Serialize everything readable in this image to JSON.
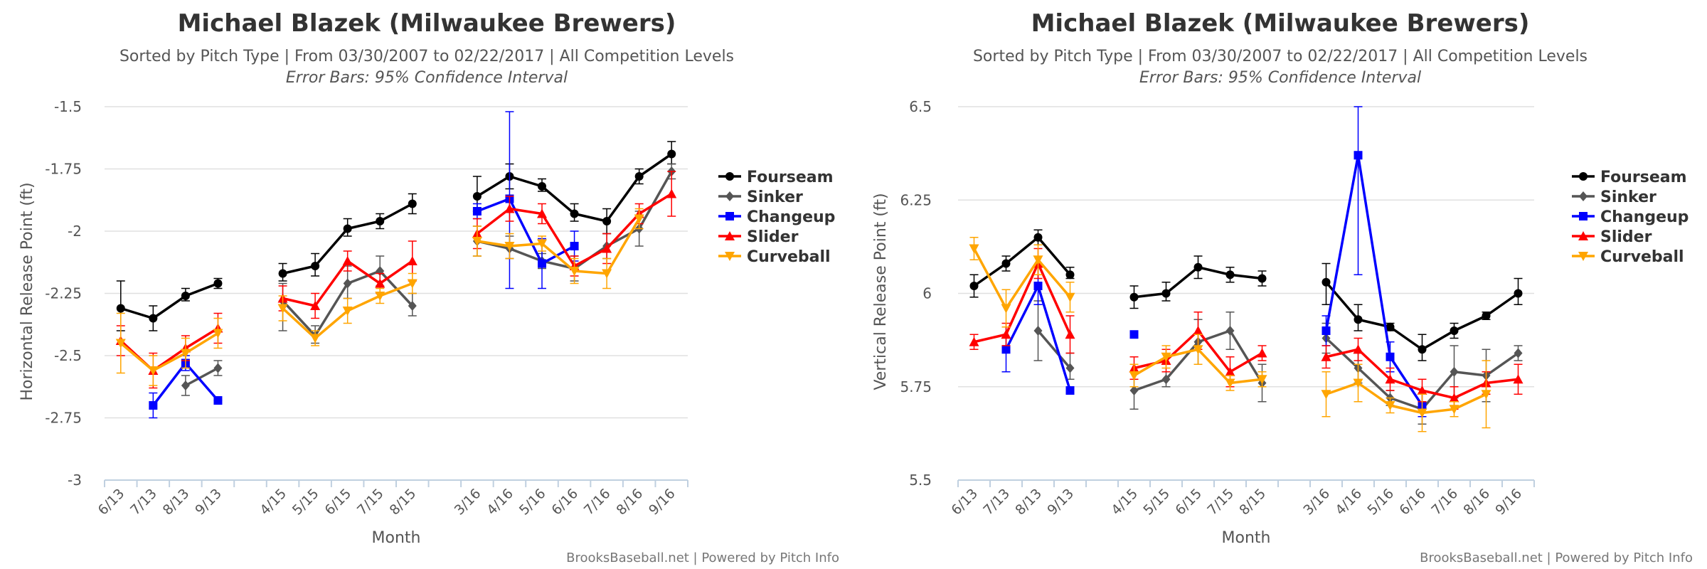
{
  "chart_data": [
    {
      "type": "line",
      "title": "Michael Blazek (Milwaukee Brewers)",
      "subtitle": "Sorted by Pitch Type | From 03/30/2007 to 02/22/2017 | All Competition Levels",
      "note": "Error Bars: 95% Confidence Interval",
      "xlabel": "Month",
      "ylabel": "Horizontal Release Point (ft)",
      "ylim": [
        -3,
        -1.5
      ],
      "yticks": [
        -1.5,
        -1.75,
        -2,
        -2.25,
        -2.5,
        -2.75,
        -3
      ],
      "ytick_labels": [
        "-1.5",
        "-1.75",
        "-2",
        "-2.25",
        "-2.5",
        "-2.75",
        "-3"
      ],
      "categories": [
        "6/13",
        "7/13",
        "8/13",
        "9/13",
        "",
        "4/15",
        "5/15",
        "6/15",
        "7/15",
        "8/15",
        "",
        "3/16",
        "4/16",
        "5/16",
        "6/16",
        "7/16",
        "8/16",
        "9/16"
      ],
      "legend_position": "right",
      "credit": "BrooksBaseball.net | Powered by Pitch Info",
      "series": [
        {
          "name": "Fourseam",
          "color": "#000000",
          "marker": "circle",
          "values": [
            -2.31,
            -2.35,
            -2.26,
            -2.21,
            null,
            -2.17,
            -2.14,
            -1.99,
            -1.96,
            -1.89,
            null,
            -1.86,
            -1.78,
            -1.82,
            -1.93,
            -1.96,
            -1.78,
            -1.69
          ],
          "err_low": [
            -2.4,
            -2.4,
            -2.28,
            -2.23,
            null,
            -2.2,
            -2.18,
            -2.02,
            -1.99,
            -1.93,
            null,
            -1.92,
            -1.83,
            -1.84,
            -1.96,
            -2.01,
            -1.81,
            -1.73
          ],
          "err_high": [
            -2.2,
            -2.3,
            -2.23,
            -2.19,
            null,
            -2.13,
            -2.09,
            -1.95,
            -1.93,
            -1.85,
            null,
            -1.78,
            -1.73,
            -1.79,
            -1.89,
            -1.91,
            -1.75,
            -1.64
          ]
        },
        {
          "name": "Sinker",
          "color": "#555555",
          "marker": "diamond",
          "values": [
            null,
            null,
            -2.62,
            -2.55,
            null,
            -2.28,
            -2.42,
            -2.21,
            -2.16,
            -2.3,
            null,
            -2.04,
            -2.07,
            -2.12,
            -2.15,
            -2.06,
            -1.99,
            -1.76
          ],
          "err_low": [
            null,
            null,
            -2.66,
            -2.58,
            null,
            -2.4,
            -2.45,
            -2.27,
            -2.22,
            -2.34,
            null,
            -2.1,
            -2.11,
            -2.15,
            -2.2,
            -2.11,
            -2.06,
            -1.79
          ],
          "err_high": [
            null,
            null,
            -2.58,
            -2.52,
            null,
            -2.21,
            -2.38,
            -2.14,
            -2.1,
            -2.25,
            null,
            -1.98,
            -2.02,
            -2.09,
            -2.1,
            -2.01,
            -1.92,
            -1.73
          ]
        },
        {
          "name": "Changeup",
          "color": "#0000ff",
          "marker": "square",
          "values": [
            null,
            -2.7,
            -2.53,
            -2.68,
            null,
            null,
            null,
            null,
            null,
            null,
            null,
            -1.92,
            -1.87,
            -2.13,
            -2.06,
            null,
            null,
            null
          ],
          "err_low": [
            null,
            -2.75,
            -2.56,
            -2.68,
            null,
            null,
            null,
            null,
            null,
            null,
            null,
            -1.95,
            -2.23,
            -2.23,
            -2.12,
            null,
            null,
            null
          ],
          "err_high": [
            null,
            -2.65,
            -2.5,
            -2.68,
            null,
            null,
            null,
            null,
            null,
            null,
            null,
            -1.89,
            -1.52,
            -2.03,
            -2.0,
            null,
            null,
            null
          ]
        },
        {
          "name": "Slider",
          "color": "#ff0000",
          "marker": "triangle",
          "values": [
            -2.44,
            -2.56,
            -2.47,
            -2.39,
            null,
            -2.27,
            -2.3,
            -2.12,
            -2.21,
            -2.12,
            null,
            -2.01,
            -1.91,
            -1.93,
            -2.14,
            -2.07,
            -1.93,
            -1.85
          ],
          "err_low": [
            -2.5,
            -2.63,
            -2.52,
            -2.45,
            null,
            -2.32,
            -2.35,
            -2.16,
            -2.25,
            -2.2,
            null,
            -2.07,
            -1.96,
            -1.97,
            -2.18,
            -2.13,
            -1.97,
            -1.94
          ],
          "err_high": [
            -2.38,
            -2.49,
            -2.42,
            -2.33,
            null,
            -2.22,
            -2.25,
            -2.08,
            -2.17,
            -2.04,
            null,
            -1.95,
            -1.86,
            -1.89,
            -2.1,
            -2.01,
            -1.89,
            -1.76
          ]
        },
        {
          "name": "Curveball",
          "color": "#ffa500",
          "marker": "triangle-down",
          "values": [
            -2.45,
            -2.56,
            -2.49,
            -2.41,
            null,
            -2.31,
            -2.43,
            -2.32,
            -2.26,
            -2.21,
            null,
            -2.04,
            -2.06,
            -2.05,
            -2.16,
            -2.17,
            -1.95,
            null
          ],
          "err_low": [
            -2.57,
            -2.62,
            -2.55,
            -2.47,
            null,
            -2.36,
            -2.46,
            -2.37,
            -2.29,
            -2.25,
            null,
            -2.1,
            -2.11,
            -2.08,
            -2.21,
            -2.23,
            -1.99,
            null
          ],
          "err_high": [
            -2.33,
            -2.5,
            -2.43,
            -2.35,
            null,
            -2.26,
            -2.4,
            -2.27,
            -2.23,
            -2.17,
            null,
            -1.98,
            -2.01,
            -2.02,
            -2.11,
            -2.11,
            -1.91,
            null
          ]
        }
      ]
    },
    {
      "type": "line",
      "title": "Michael Blazek (Milwaukee Brewers)",
      "subtitle": "Sorted by Pitch Type | From 03/30/2007 to 02/22/2017 | All Competition Levels",
      "note": "Error Bars: 95% Confidence Interval",
      "xlabel": "Month",
      "ylabel": "Vertical Release Point (ft)",
      "ylim": [
        5.5,
        6.5
      ],
      "yticks": [
        6.5,
        6.25,
        6,
        5.75,
        5.5
      ],
      "ytick_labels": [
        "6.5",
        "6.25",
        "6",
        "5.75",
        "5.5"
      ],
      "categories": [
        "6/13",
        "7/13",
        "8/13",
        "9/13",
        "",
        "4/15",
        "5/15",
        "6/15",
        "7/15",
        "8/15",
        "",
        "3/16",
        "4/16",
        "5/16",
        "6/16",
        "7/16",
        "8/16",
        "9/16"
      ],
      "legend_position": "right",
      "credit": "BrooksBaseball.net | Powered by Pitch Info",
      "series": [
        {
          "name": "Fourseam",
          "color": "#000000",
          "marker": "circle",
          "values": [
            6.02,
            6.08,
            6.15,
            6.05,
            null,
            5.99,
            6.0,
            6.07,
            6.05,
            6.04,
            null,
            6.03,
            5.93,
            5.91,
            5.85,
            5.9,
            5.94,
            6.0
          ],
          "err_low": [
            5.99,
            6.06,
            6.13,
            6.04,
            null,
            5.96,
            5.98,
            6.04,
            6.03,
            6.02,
            null,
            5.97,
            5.9,
            5.9,
            5.82,
            5.88,
            5.93,
            5.97
          ],
          "err_high": [
            6.05,
            6.1,
            6.17,
            6.07,
            null,
            6.02,
            6.03,
            6.1,
            6.07,
            6.06,
            null,
            6.08,
            5.97,
            5.92,
            5.89,
            5.92,
            5.95,
            6.04
          ]
        },
        {
          "name": "Sinker",
          "color": "#555555",
          "marker": "diamond",
          "values": [
            null,
            null,
            5.9,
            5.8,
            null,
            5.74,
            5.77,
            5.87,
            5.9,
            5.76,
            null,
            5.88,
            5.8,
            5.72,
            5.69,
            5.79,
            5.78,
            5.84
          ],
          "err_low": [
            null,
            null,
            5.82,
            5.77,
            null,
            5.69,
            5.75,
            5.81,
            5.85,
            5.71,
            null,
            5.84,
            5.76,
            5.7,
            5.65,
            5.72,
            5.71,
            5.82
          ],
          "err_high": [
            null,
            null,
            5.98,
            5.84,
            null,
            5.79,
            5.79,
            5.93,
            5.95,
            5.81,
            null,
            5.92,
            5.84,
            5.74,
            5.73,
            5.86,
            5.85,
            5.86
          ]
        },
        {
          "name": "Changeup",
          "color": "#0000ff",
          "marker": "square",
          "values": [
            null,
            5.85,
            6.02,
            5.74,
            null,
            5.89,
            null,
            null,
            null,
            null,
            null,
            5.9,
            6.37,
            5.83,
            5.7,
            null,
            null,
            null
          ],
          "err_low": [
            null,
            5.79,
            5.97,
            5.74,
            null,
            5.89,
            null,
            null,
            null,
            null,
            null,
            5.86,
            6.05,
            5.79,
            5.67,
            null,
            null,
            null
          ],
          "err_high": [
            null,
            5.91,
            6.07,
            5.74,
            null,
            5.89,
            null,
            null,
            null,
            null,
            null,
            5.94,
            6.5,
            5.87,
            5.73,
            null,
            null,
            null
          ]
        },
        {
          "name": "Slider",
          "color": "#ff0000",
          "marker": "triangle",
          "values": [
            5.87,
            5.89,
            6.08,
            5.89,
            null,
            5.8,
            5.82,
            5.9,
            5.79,
            5.84,
            null,
            5.83,
            5.85,
            5.77,
            5.74,
            5.72,
            5.76,
            5.77
          ],
          "err_low": [
            5.85,
            5.86,
            6.04,
            5.84,
            null,
            5.77,
            5.79,
            5.85,
            5.75,
            5.82,
            null,
            5.8,
            5.82,
            5.74,
            5.71,
            5.69,
            5.73,
            5.73
          ],
          "err_high": [
            5.89,
            5.92,
            6.12,
            5.94,
            null,
            5.83,
            5.85,
            5.95,
            5.83,
            5.86,
            null,
            5.86,
            5.88,
            5.8,
            5.77,
            5.75,
            5.79,
            5.81
          ]
        },
        {
          "name": "Curveball",
          "color": "#ffa500",
          "marker": "triangle-down",
          "values": [
            6.12,
            5.96,
            6.09,
            5.99,
            null,
            5.78,
            5.83,
            5.85,
            5.76,
            5.77,
            null,
            5.73,
            5.76,
            5.7,
            5.68,
            5.69,
            5.73,
            null
          ],
          "err_low": [
            6.09,
            5.91,
            6.05,
            5.95,
            null,
            5.75,
            5.8,
            5.81,
            5.74,
            5.75,
            null,
            5.67,
            5.71,
            5.68,
            5.63,
            5.67,
            5.64,
            null
          ],
          "err_high": [
            6.15,
            6.01,
            6.13,
            6.03,
            null,
            5.81,
            5.86,
            5.89,
            5.78,
            5.79,
            null,
            5.79,
            5.81,
            5.72,
            5.73,
            5.71,
            5.82,
            null
          ]
        }
      ]
    }
  ]
}
